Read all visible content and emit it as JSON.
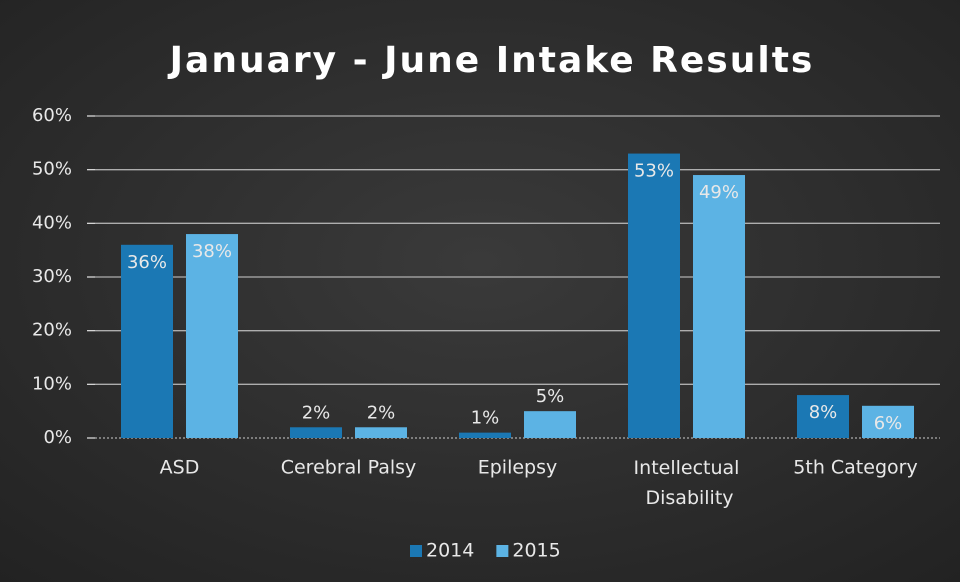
{
  "chart_data": {
    "type": "bar",
    "title": "January - June Intake Results",
    "categories": [
      "ASD",
      "Cerebral Palsy",
      "Epilepsy",
      "Intellectual Disability",
      "5th Category"
    ],
    "series": [
      {
        "name": "2014",
        "color": "#1b78b4",
        "values": [
          36,
          2,
          1,
          53,
          8
        ],
        "value_labels": [
          "36%",
          "2%",
          "1%",
          "53%",
          "8%"
        ]
      },
      {
        "name": "2015",
        "color": "#5cb3e4",
        "values": [
          38,
          2,
          5,
          49,
          6
        ],
        "value_labels": [
          "38%",
          "2%",
          "5%",
          "49%",
          "6%"
        ]
      }
    ],
    "ylim": [
      0,
      60
    ],
    "yticks": [
      {
        "value": 0,
        "label": "0%"
      },
      {
        "value": 10,
        "label": "10%"
      },
      {
        "value": 20,
        "label": "20%"
      },
      {
        "value": 30,
        "label": "30%"
      },
      {
        "value": 40,
        "label": "40%"
      },
      {
        "value": 50,
        "label": "50%"
      },
      {
        "value": 60,
        "label": "60%"
      }
    ],
    "grid": true,
    "legend": "bottom"
  }
}
